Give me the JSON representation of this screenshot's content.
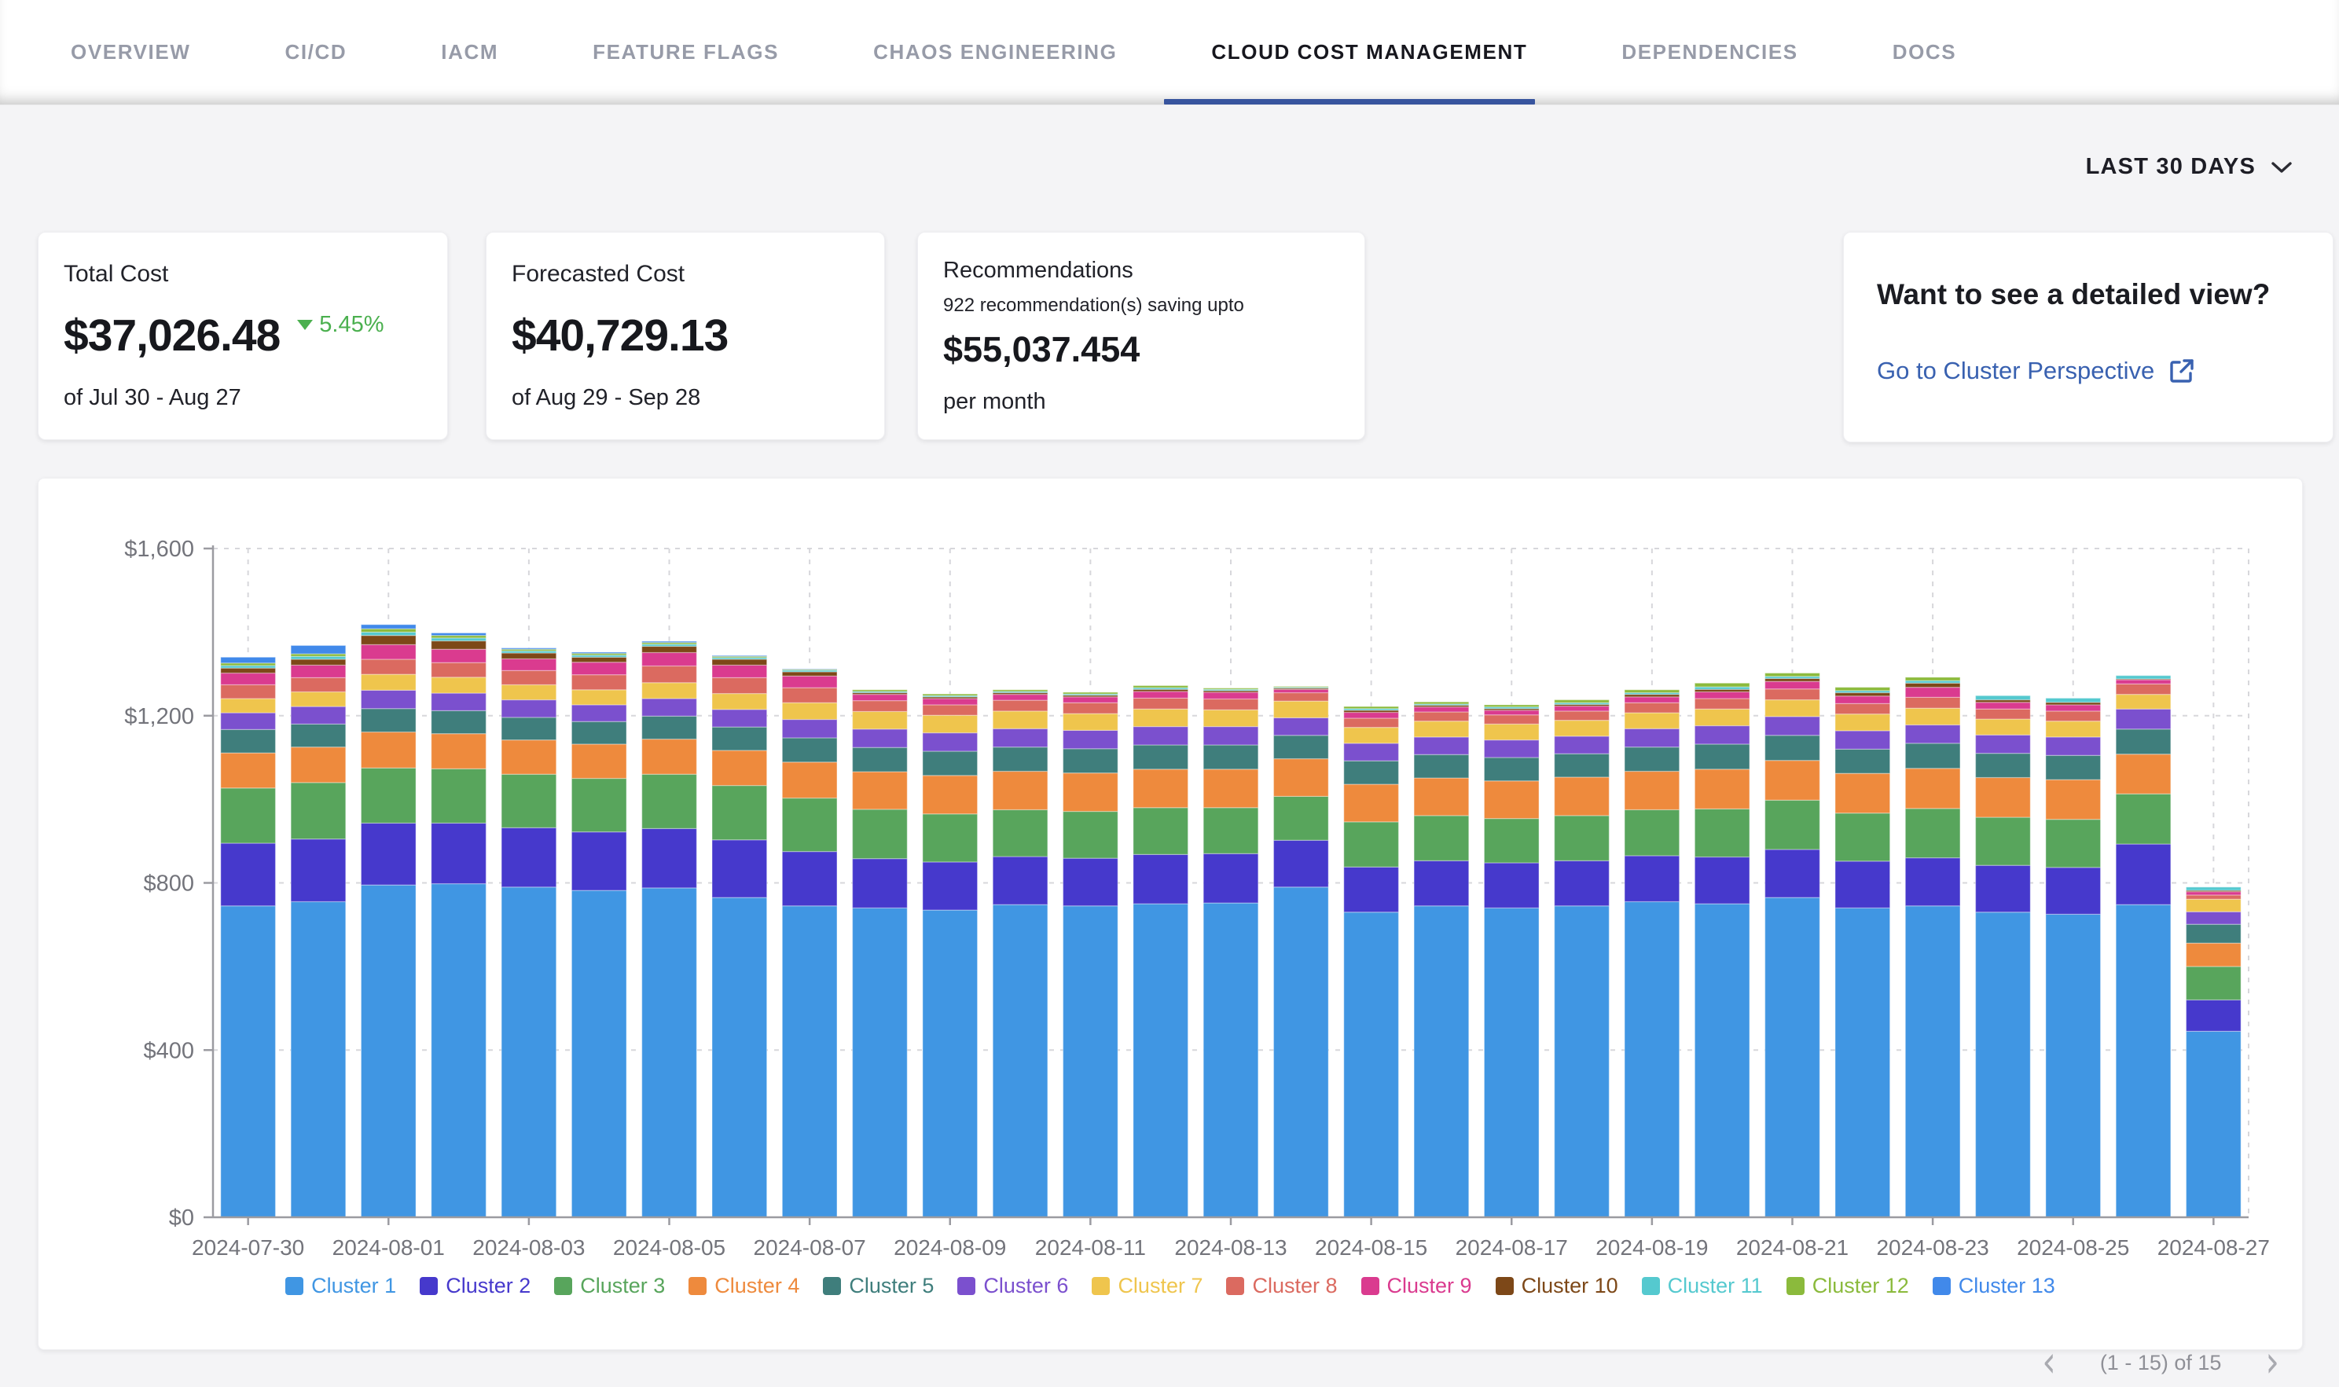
{
  "nav": {
    "tabs": [
      {
        "label": "OVERVIEW",
        "active": false
      },
      {
        "label": "CI/CD",
        "active": false
      },
      {
        "label": "IACM",
        "active": false
      },
      {
        "label": "FEATURE FLAGS",
        "active": false
      },
      {
        "label": "CHAOS ENGINEERING",
        "active": false
      },
      {
        "label": "CLOUD COST MANAGEMENT",
        "active": true
      },
      {
        "label": "DEPENDENCIES",
        "active": false
      },
      {
        "label": "DOCS",
        "active": false
      }
    ]
  },
  "filters": {
    "date_range_label": "LAST 30 DAYS"
  },
  "cards": {
    "total_cost": {
      "title": "Total Cost",
      "value": "$37,026.48",
      "delta": "5.45%",
      "delta_direction": "down",
      "period": "of Jul 30 - Aug 27"
    },
    "forecasted_cost": {
      "title": "Forecasted Cost",
      "value": "$40,729.13",
      "period": "of Aug 29 - Sep 28"
    },
    "recommendations": {
      "title": "Recommendations",
      "subtitle": "922 recommendation(s) saving upto",
      "value": "$55,037.454",
      "suffix": "per month"
    },
    "detail_view": {
      "title": "Want to see a detailed view?",
      "link_label": "Go to Cluster Perspective"
    }
  },
  "pagination": {
    "label": "(1 - 15) of 15"
  },
  "colors": {
    "accent_navy": "#37549e",
    "link_blue": "#3961b0",
    "delta_green": "#4bb04f",
    "page_bg": "#f4f4f6",
    "axis_text": "#73747b",
    "grid_line": "#d7d7db",
    "axis_line": "#9b9ba1"
  },
  "chart_data": {
    "type": "bar",
    "stacked": true,
    "grid": true,
    "legend_position": "bottom",
    "ylim": [
      0,
      1600
    ],
    "y_ticks": [
      "$0",
      "$400",
      "$800",
      "$1,200",
      "$1,600"
    ],
    "x": [
      "2024-07-30",
      "2024-07-31",
      "2024-08-01",
      "2024-08-02",
      "2024-08-03",
      "2024-08-04",
      "2024-08-05",
      "2024-08-06",
      "2024-08-07",
      "2024-08-08",
      "2024-08-09",
      "2024-08-10",
      "2024-08-11",
      "2024-08-12",
      "2024-08-13",
      "2024-08-14",
      "2024-08-15",
      "2024-08-16",
      "2024-08-17",
      "2024-08-18",
      "2024-08-19",
      "2024-08-20",
      "2024-08-21",
      "2024-08-22",
      "2024-08-23",
      "2024-08-24",
      "2024-08-25",
      "2024-08-26",
      "2024-08-27"
    ],
    "x_tick_labels": [
      "2024-07-30",
      "2024-08-01",
      "2024-08-03",
      "2024-08-05",
      "2024-08-07",
      "2024-08-09",
      "2024-08-11",
      "2024-08-13",
      "2024-08-15",
      "2024-08-17",
      "2024-08-19",
      "2024-08-21",
      "2024-08-23",
      "2024-08-25",
      "2024-08-27"
    ],
    "series": [
      {
        "name": "Cluster 1",
        "color": "#4096e3",
        "values": [
          745,
          755,
          795,
          798,
          790,
          782,
          788,
          765,
          745,
          740,
          735,
          748,
          745,
          750,
          752,
          790,
          730,
          745,
          740,
          745,
          755,
          750,
          765,
          740,
          745,
          730,
          725,
          748,
          445
        ]
      },
      {
        "name": "Cluster 2",
        "color": "#4639cc",
        "values": [
          150,
          150,
          148,
          145,
          142,
          140,
          142,
          138,
          130,
          118,
          115,
          115,
          114,
          118,
          118,
          112,
          108,
          108,
          108,
          108,
          110,
          112,
          115,
          112,
          115,
          112,
          112,
          145,
          75
        ]
      },
      {
        "name": "Cluster 3",
        "color": "#58a55c",
        "values": [
          132,
          135,
          132,
          130,
          128,
          128,
          130,
          130,
          128,
          118,
          115,
          112,
          112,
          112,
          110,
          105,
          108,
          108,
          106,
          108,
          110,
          115,
          118,
          115,
          118,
          115,
          115,
          120,
          80
        ]
      },
      {
        "name": "Cluster 4",
        "color": "#ee8a3d",
        "values": [
          84,
          85,
          86,
          84,
          82,
          82,
          84,
          84,
          86,
          90,
          92,
          92,
          92,
          92,
          92,
          90,
          90,
          90,
          90,
          92,
          92,
          95,
          95,
          95,
          96,
          95,
          95,
          95,
          56
        ]
      },
      {
        "name": "Cluster 5",
        "color": "#3f7e7c",
        "values": [
          56,
          55,
          56,
          55,
          54,
          54,
          55,
          56,
          58,
          58,
          58,
          58,
          58,
          58,
          58,
          56,
          56,
          56,
          56,
          56,
          58,
          60,
          60,
          58,
          60,
          58,
          58,
          60,
          45
        ]
      },
      {
        "name": "Cluster 6",
        "color": "#7b50ce",
        "values": [
          40,
          42,
          44,
          42,
          42,
          40,
          42,
          42,
          44,
          44,
          44,
          44,
          44,
          44,
          44,
          42,
          42,
          42,
          42,
          42,
          44,
          44,
          45,
          44,
          44,
          44,
          44,
          48,
          30
        ]
      },
      {
        "name": "Cluster 7",
        "color": "#efc54d",
        "values": [
          34,
          35,
          38,
          38,
          36,
          36,
          38,
          38,
          40,
          42,
          42,
          42,
          40,
          42,
          40,
          40,
          38,
          38,
          38,
          38,
          38,
          40,
          40,
          40,
          40,
          38,
          38,
          35,
          30
        ]
      },
      {
        "name": "Cluster 8",
        "color": "#db6a60",
        "values": [
          33,
          34,
          36,
          35,
          34,
          36,
          40,
          38,
          36,
          26,
          25,
          26,
          26,
          26,
          26,
          20,
          22,
          22,
          22,
          22,
          24,
          25,
          26,
          25,
          26,
          24,
          24,
          25,
          10
        ]
      },
      {
        "name": "Cluster 9",
        "color": "#da3b8f",
        "values": [
          28,
          30,
          35,
          32,
          28,
          30,
          32,
          30,
          28,
          15,
          15,
          14,
          14,
          16,
          16,
          8,
          14,
          12,
          11,
          12,
          14,
          16,
          18,
          18,
          24,
          16,
          15,
          10,
          8
        ]
      },
      {
        "name": "Cluster 10",
        "color": "#7d4818",
        "values": [
          12,
          14,
          22,
          20,
          14,
          12,
          15,
          14,
          10,
          4,
          4,
          4,
          4,
          5,
          4,
          3,
          5,
          4,
          4,
          4,
          6,
          6,
          7,
          8,
          10,
          6,
          6,
          2,
          3
        ]
      },
      {
        "name": "Cluster 11",
        "color": "#55c9cf",
        "values": [
          6,
          7,
          8,
          7,
          5,
          5,
          5,
          4,
          4,
          3,
          3,
          3,
          3,
          4,
          3,
          2,
          4,
          3,
          4,
          4,
          4,
          6,
          5,
          5,
          6,
          10,
          10,
          8,
          8
        ]
      },
      {
        "name": "Cluster 12",
        "color": "#8bba3c",
        "values": [
          6,
          6,
          8,
          6,
          4,
          4,
          4,
          3,
          2,
          4,
          4,
          4,
          4,
          5,
          3,
          2,
          5,
          5,
          5,
          7,
          7,
          9,
          8,
          8,
          8,
          0,
          0,
          0,
          0
        ]
      },
      {
        "name": "Cluster 13",
        "color": "#4189ea",
        "values": [
          14,
          20,
          10,
          6,
          3,
          3,
          3,
          2,
          1,
          0,
          0,
          0,
          0,
          0,
          0,
          0,
          0,
          0,
          0,
          0,
          0,
          0,
          0,
          0,
          0,
          0,
          0,
          0,
          0
        ]
      }
    ]
  }
}
